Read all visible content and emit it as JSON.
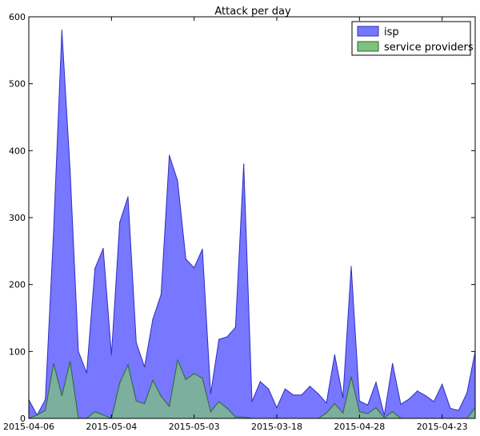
{
  "chart_data": {
    "type": "area",
    "title": "Attack per day",
    "xlabel": "",
    "ylabel": "",
    "ylim": [
      0,
      600
    ],
    "y_ticks": [
      0,
      100,
      200,
      300,
      400,
      500,
      600
    ],
    "x_tick_labels": [
      "2015-04-06",
      "2015-05-04",
      "2015-05-03",
      "2015-03-18",
      "2015-04-28",
      "2015-04-23"
    ],
    "x_tick_index": [
      0,
      10,
      20,
      30,
      40,
      50
    ],
    "legend": {
      "placement": "top-right"
    },
    "series": [
      {
        "name": "isp",
        "color": "#7777ff",
        "edge": "#2e2ec2",
        "values": [
          28,
          5,
          28,
          280,
          580,
          370,
          100,
          68,
          224,
          254,
          95,
          293,
          331,
          113,
          77,
          148,
          185,
          393,
          355,
          238,
          225,
          253,
          37,
          118,
          122,
          136,
          380,
          25,
          55,
          44,
          16,
          44,
          35,
          35,
          48,
          37,
          23,
          95,
          31,
          227,
          26,
          20,
          54,
          5,
          82,
          21,
          29,
          41,
          34,
          25,
          51,
          15,
          12,
          38,
          100
        ]
      },
      {
        "name": "service providers",
        "color": "#7ec17e",
        "edge": "#2a6a2a",
        "values": [
          0,
          5,
          12,
          82,
          34,
          85,
          0,
          0,
          10,
          5,
          0,
          53,
          80,
          26,
          22,
          57,
          33,
          18,
          87,
          58,
          67,
          60,
          10,
          25,
          15,
          2,
          2,
          0,
          0,
          0,
          0,
          0,
          0,
          0,
          0,
          0,
          8,
          22,
          8,
          62,
          10,
          7,
          16,
          1,
          10,
          0,
          0,
          0,
          0,
          0,
          0,
          0,
          0,
          0,
          16
        ]
      }
    ]
  }
}
